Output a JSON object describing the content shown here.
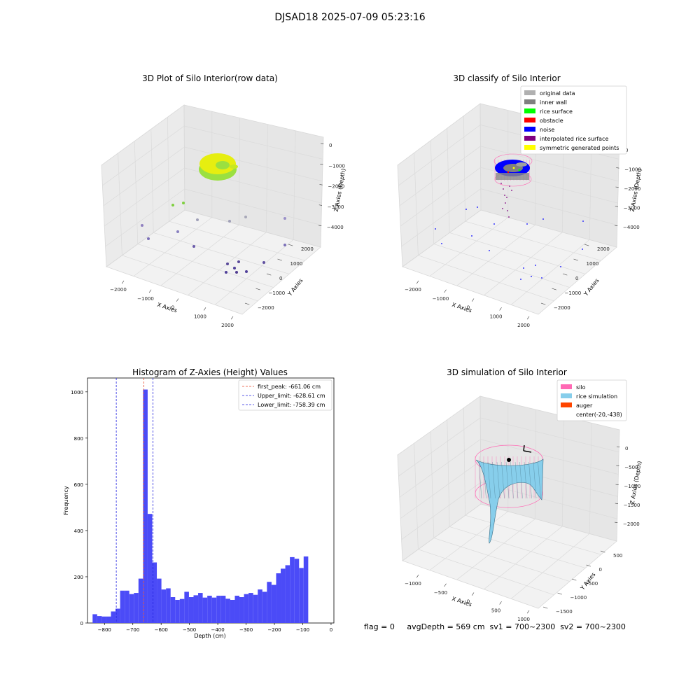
{
  "suptitle": "DJSAD18 2025-07-09 05:23:16",
  "status_line": "flag = 0     avgDepth = 569 cm  sv1 = 700~2300  sv2 = 700~2300",
  "colors": {
    "histogram_bar": "#4B4BF7",
    "peak_line": "#E8482B",
    "limit_line": "#2323E0",
    "surface_yellow": "#E6EE10",
    "surface_green": "#9BE040",
    "silo_pink": "#FF69B4",
    "rice_blue": "#87CEEB",
    "auger": "#FF4500"
  },
  "panels": {
    "raw": {
      "title": "3D Plot of Silo Interior(row data)",
      "xlabel": "X Axies",
      "ylabel": "Y Axies",
      "zlabel": "Z Axies (Depth)",
      "x_ticks": [
        "−2000",
        "−1000",
        "0",
        "1000",
        "2000"
      ],
      "y_ticks": [
        "2000",
        "1000",
        "0",
        "−1000",
        "−2000"
      ],
      "z_ticks": [
        "0",
        "−1000",
        "−2000",
        "−3000",
        "−4000"
      ]
    },
    "classify": {
      "title": "3D classify of Silo Interior",
      "xlabel": "X Axies",
      "ylabel": "Y Axies",
      "zlabel": "Z Axies (Depth)",
      "x_ticks": [
        "−2000",
        "−1000",
        "0",
        "1000",
        "2000"
      ],
      "y_ticks": [
        "2000",
        "1000",
        "0",
        "−1000",
        "−2000"
      ],
      "z_ticks": [
        "0",
        "−1000",
        "−2000",
        "−3000",
        "−4000"
      ],
      "legend": [
        {
          "label": "original data",
          "color": "#B0B0B0"
        },
        {
          "label": "inner wall",
          "color": "#808080"
        },
        {
          "label": "rice surface",
          "color": "#00FF00"
        },
        {
          "label": "obstacle",
          "color": "#FF0000"
        },
        {
          "label": "noise",
          "color": "#0000FF"
        },
        {
          "label": "interpolated rice surface",
          "color": "#800080"
        },
        {
          "label": "symmetric generated points",
          "color": "#FFFF00"
        }
      ]
    },
    "simulation": {
      "title": "3D simulation of Silo Interior",
      "xlabel": "X Axies",
      "ylabel": "Y Axies",
      "zlabel": "Z Axies (Depth)",
      "x_ticks": [
        "−1000",
        "−500",
        "0",
        "500",
        "1000"
      ],
      "y_ticks": [
        "500",
        "0",
        "−500",
        "−1000",
        "−1500"
      ],
      "z_ticks": [
        "0",
        "−500",
        "−1000",
        "−1500",
        "−2000"
      ],
      "legend": [
        {
          "label": "silo",
          "color": "#FF69B4"
        },
        {
          "label": "rice simulation",
          "color": "#87CEEB"
        },
        {
          "label": "auger",
          "color": "#FF4500"
        },
        {
          "label": "center(-20,-438)",
          "color": ""
        }
      ]
    }
  },
  "chart_data": {
    "type": "bar",
    "title": "Histogram of Z-Axies (Height) Values",
    "xlabel": "Depth (cm)",
    "ylabel": "Frequency",
    "xlim": [
      -860,
      10
    ],
    "ylim": [
      0,
      1060
    ],
    "x_ticks": [
      -800,
      -700,
      -600,
      -500,
      -400,
      -300,
      -200,
      -100,
      0
    ],
    "y_ticks": [
      0,
      200,
      400,
      600,
      800,
      1000
    ],
    "bin_start": -842,
    "bin_width": 16.2,
    "values": [
      38,
      30,
      28,
      28,
      50,
      62,
      140,
      140,
      125,
      130,
      192,
      1010,
      472,
      262,
      192,
      145,
      150,
      112,
      100,
      104,
      135,
      112,
      120,
      130,
      110,
      118,
      110,
      118,
      118,
      105,
      100,
      118,
      112,
      125,
      130,
      122,
      145,
      135,
      178,
      165,
      215,
      235,
      250,
      285,
      278,
      238,
      288
    ],
    "vlines": [
      {
        "label": "first_peak: -661.06 cm",
        "x": -661.06,
        "color": "#E8482B"
      },
      {
        "label": "Upper_limit: -628.61 cm",
        "x": -628.61,
        "color": "#2323E0"
      },
      {
        "label": "Lower_limit: -758.39 cm",
        "x": -758.39,
        "color": "#2323E0"
      }
    ],
    "legend_position": "upper right"
  }
}
